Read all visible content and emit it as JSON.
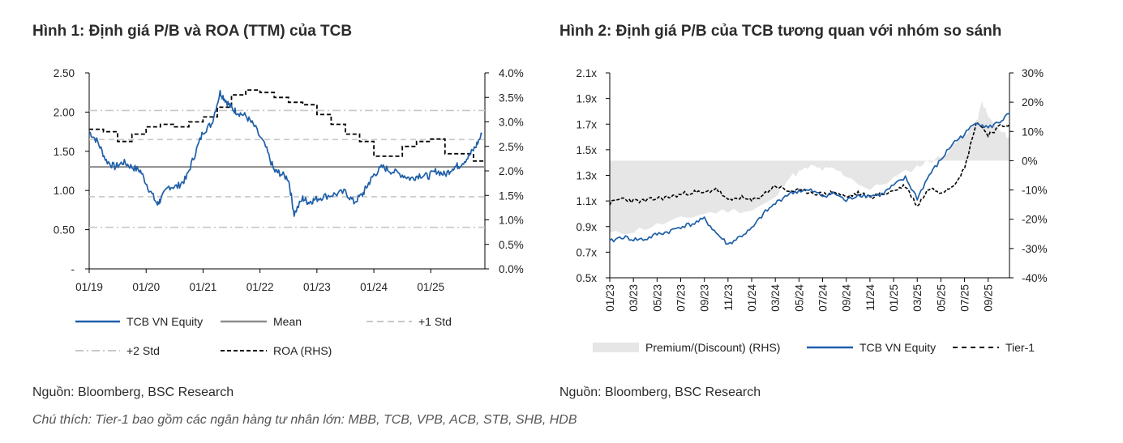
{
  "source_left": "Nguồn: Bloomberg, BSC Research",
  "source_right": "Nguồn: Bloomberg, BSC Research",
  "note": "Chú thích: Tier-1 bao gồm các ngân hàng tư nhân lớn: MBB, TCB, VPB, ACB, STB, SHB, HDB",
  "colors": {
    "blue": "#1f5fa8",
    "mean": "#8c8c8c",
    "dash": "#c8c8c8",
    "black": "#000000",
    "premium": "#e6e6e6"
  },
  "chart_data": [
    {
      "type": "line",
      "title": "Hình 1: Định giá P/B và ROA (TTM) của TCB",
      "x_ticks": [
        "01/19",
        "01/20",
        "01/21",
        "01/22",
        "01/23",
        "01/24",
        "01/25"
      ],
      "x_range": [
        2019.0,
        2025.95
      ],
      "y_left": {
        "range": [
          0,
          2.5
        ],
        "ticks": [
          "-",
          "0.50",
          "1.00",
          "1.50",
          "2.00",
          "2.50"
        ]
      },
      "y_right": {
        "range": [
          0,
          4.0
        ],
        "ticks": [
          "0.0%",
          "0.5%",
          "1.0%",
          "1.5%",
          "2.0%",
          "2.5%",
          "3.0%",
          "3.5%",
          "4.0%"
        ]
      },
      "reference_lines": {
        "mean": 1.3,
        "plus1_std": 1.65,
        "minus1_std": 0.92,
        "plus2_std": 2.02,
        "minus2_std": 0.53
      },
      "series": [
        {
          "name": "TCB VN Equity",
          "axis": "left",
          "style": "solid",
          "x": [
            2019.0,
            2019.15,
            2019.3,
            2019.45,
            2019.6,
            2019.75,
            2019.9,
            2020.05,
            2020.2,
            2020.25,
            2020.4,
            2020.55,
            2020.7,
            2020.85,
            2021.0,
            2021.15,
            2021.3,
            2021.4,
            2021.5,
            2021.6,
            2021.75,
            2021.9,
            2022.1,
            2022.25,
            2022.35,
            2022.5,
            2022.6,
            2022.75,
            2022.85,
            2022.95,
            2023.1,
            2023.3,
            2023.5,
            2023.65,
            2023.8,
            2023.9,
            2024.0,
            2024.15,
            2024.3,
            2024.5,
            2024.65,
            2024.8,
            2024.95,
            2025.1,
            2025.25,
            2025.4,
            2025.5,
            2025.65,
            2025.78,
            2025.9
          ],
          "values": [
            1.75,
            1.62,
            1.38,
            1.3,
            1.36,
            1.3,
            1.25,
            1.02,
            0.82,
            0.88,
            1.05,
            1.05,
            1.15,
            1.45,
            1.75,
            1.85,
            2.25,
            2.15,
            2.05,
            2.0,
            1.95,
            1.82,
            1.55,
            1.25,
            1.22,
            1.15,
            0.7,
            0.9,
            0.85,
            0.88,
            0.92,
            0.95,
            0.98,
            0.85,
            0.95,
            1.08,
            1.2,
            1.3,
            1.25,
            1.2,
            1.15,
            1.2,
            1.18,
            1.25,
            1.2,
            1.3,
            1.32,
            1.42,
            1.55,
            1.72
          ]
        },
        {
          "name": "ROA (RHS)",
          "axis": "right",
          "style": "dashed",
          "x": [
            2019.0,
            2019.25,
            2019.5,
            2019.75,
            2020.0,
            2020.25,
            2020.5,
            2020.75,
            2021.0,
            2021.25,
            2021.5,
            2021.75,
            2022.0,
            2022.25,
            2022.5,
            2022.75,
            2023.0,
            2023.25,
            2023.5,
            2023.75,
            2024.0,
            2024.25,
            2024.5,
            2024.75,
            2025.0,
            2025.25,
            2025.5,
            2025.75,
            2025.95
          ],
          "values": [
            2.85,
            2.8,
            2.6,
            2.75,
            2.9,
            2.95,
            2.9,
            3.0,
            3.1,
            3.3,
            3.55,
            3.65,
            3.6,
            3.5,
            3.4,
            3.35,
            3.15,
            2.95,
            2.75,
            2.6,
            2.3,
            2.3,
            2.5,
            2.6,
            2.65,
            2.35,
            2.35,
            2.2,
            2.2
          ]
        },
        {
          "name": "Mean",
          "axis": "left",
          "style": "solid",
          "x": [
            2019.0,
            2025.95
          ],
          "values": [
            1.3,
            1.3
          ]
        },
        {
          "name": "+1 Std",
          "axis": "left",
          "style": "dashed",
          "x": [
            2019.0,
            2025.95
          ],
          "values": [
            1.65,
            1.65
          ]
        },
        {
          "name": "+2 Std",
          "axis": "left",
          "style": "dashdot",
          "x": [
            2019.0,
            2025.95
          ],
          "values": [
            2.02,
            2.02
          ]
        }
      ],
      "legend": [
        "TCB VN Equity",
        "Mean",
        "+1 Std",
        "+2 Std",
        "ROA (RHS)"
      ]
    },
    {
      "type": "line",
      "title": "Hình 2: Định giá P/B của TCB tương quan với nhóm so sánh",
      "x_ticks": [
        "01/23",
        "03/23",
        "05/23",
        "07/23",
        "09/23",
        "11/23",
        "01/24",
        "03/24",
        "05/24",
        "07/24",
        "09/24",
        "11/24",
        "01/25",
        "03/25",
        "05/25",
        "07/25",
        "09/25"
      ],
      "x_range": [
        0,
        33.8
      ],
      "y_left": {
        "range": [
          0.5,
          2.1
        ],
        "ticks": [
          "0.5x",
          "0.7x",
          "0.9x",
          "1.1x",
          "1.3x",
          "1.5x",
          "1.7x",
          "1.9x",
          "2.1x"
        ]
      },
      "y_right": {
        "range": [
          -40,
          30
        ],
        "ticks": [
          "-40%",
          "-30%",
          "-20%",
          "-10%",
          "0%",
          "10%",
          "20%",
          "30%"
        ]
      },
      "series": [
        {
          "name": "Premium/(Discount) (RHS)",
          "axis": "right",
          "style": "area",
          "x": [
            0,
            2,
            4,
            6,
            8,
            10,
            12,
            14,
            15,
            16,
            17,
            18,
            19,
            20,
            22,
            24,
            26,
            27,
            28,
            29,
            30,
            31,
            31.5,
            32,
            33,
            33.8
          ],
          "values": [
            -25,
            -24,
            -22,
            -20,
            -18,
            -17,
            -17,
            -13,
            -6,
            -4,
            -2,
            -3,
            -3,
            -5,
            -10,
            -6,
            -2,
            0,
            1,
            5,
            9,
            13,
            20,
            15,
            10,
            8
          ]
        },
        {
          "name": "TCB VN Equity",
          "axis": "left",
          "style": "solid",
          "x": [
            0,
            1,
            2,
            3,
            4,
            5,
            6,
            7,
            8,
            9,
            10,
            11,
            12,
            13,
            14,
            15,
            16,
            17,
            18,
            19,
            20,
            21,
            22,
            23,
            24,
            25,
            26,
            27,
            28,
            29,
            30,
            31,
            32,
            33,
            33.8
          ],
          "values": [
            0.78,
            0.82,
            0.8,
            0.8,
            0.84,
            0.86,
            0.9,
            0.92,
            0.96,
            0.85,
            0.76,
            0.82,
            0.88,
            1.0,
            1.08,
            1.15,
            1.18,
            1.18,
            1.14,
            1.16,
            1.1,
            1.15,
            1.14,
            1.15,
            1.22,
            1.28,
            1.12,
            1.3,
            1.42,
            1.55,
            1.62,
            1.72,
            1.67,
            1.72,
            1.78
          ]
        },
        {
          "name": "Tier-1",
          "axis": "left",
          "style": "dashed",
          "x": [
            0,
            1,
            2,
            3,
            4,
            5,
            6,
            7,
            8,
            9,
            10,
            11,
            12,
            13,
            14,
            15,
            16,
            17,
            18,
            19,
            20,
            21,
            22,
            23,
            24,
            25,
            26,
            27,
            28,
            29,
            30,
            31,
            32,
            33,
            33.8
          ],
          "values": [
            1.08,
            1.12,
            1.1,
            1.1,
            1.12,
            1.13,
            1.15,
            1.17,
            1.16,
            1.2,
            1.1,
            1.13,
            1.1,
            1.15,
            1.22,
            1.18,
            1.18,
            1.17,
            1.15,
            1.17,
            1.13,
            1.16,
            1.13,
            1.15,
            1.18,
            1.22,
            1.06,
            1.2,
            1.17,
            1.22,
            1.35,
            1.72,
            1.62,
            1.68,
            1.7
          ]
        }
      ],
      "legend": [
        "Premium/(Discount) (RHS)",
        "TCB VN Equity",
        "Tier-1"
      ]
    }
  ]
}
